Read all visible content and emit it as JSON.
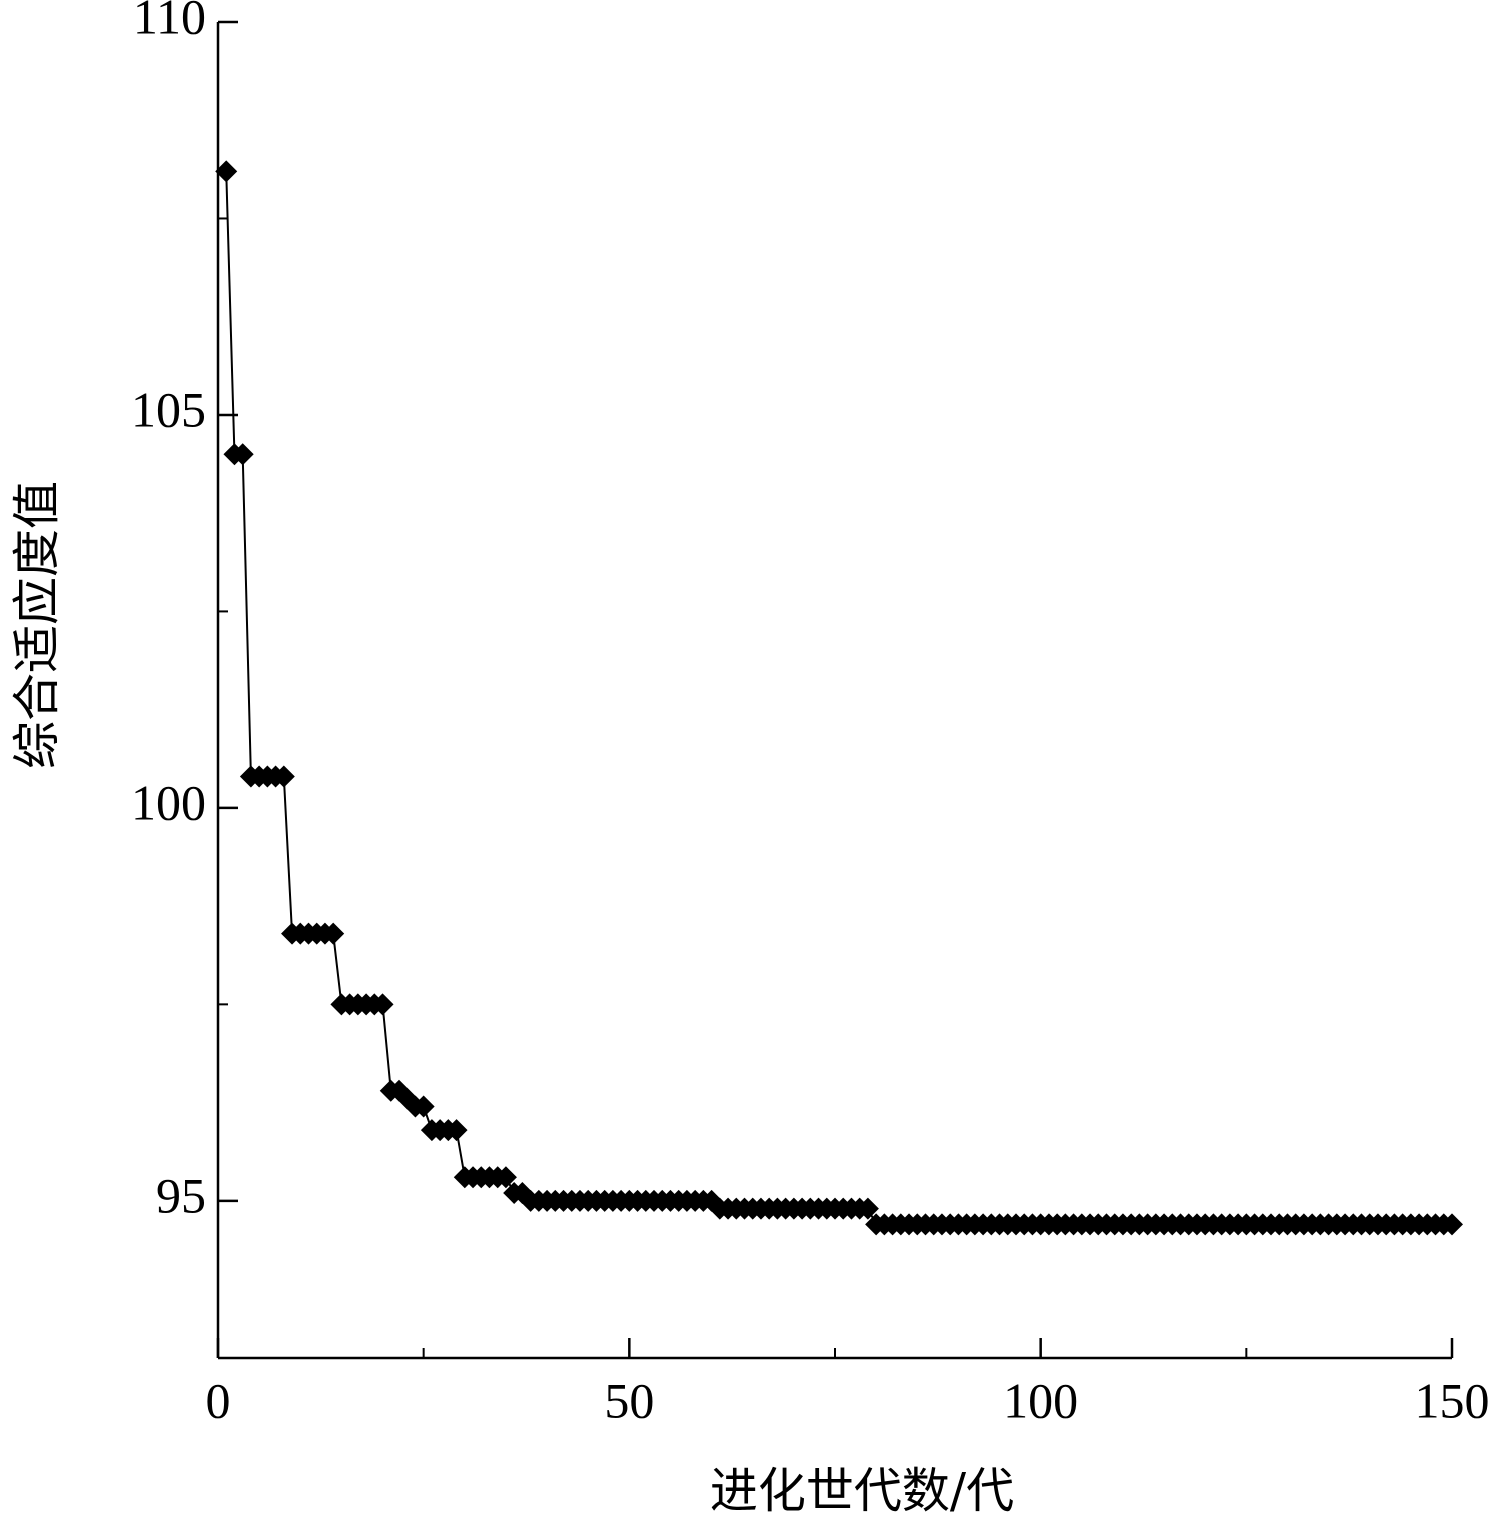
{
  "chart_data": {
    "type": "line",
    "xlabel": "进化世代数/代",
    "ylabel": "综合适应度值",
    "x": [
      1,
      2,
      3,
      4,
      5,
      6,
      7,
      8,
      9,
      10,
      11,
      12,
      13,
      14,
      15,
      16,
      17,
      18,
      19,
      20,
      21,
      22,
      23,
      24,
      25,
      26,
      27,
      28,
      29,
      30,
      31,
      32,
      33,
      34,
      35,
      36,
      37,
      38,
      39,
      40,
      41,
      42,
      43,
      44,
      45,
      46,
      47,
      48,
      49,
      50,
      51,
      52,
      53,
      54,
      55,
      56,
      57,
      58,
      59,
      60,
      61,
      62,
      63,
      64,
      65,
      66,
      67,
      68,
      69,
      70,
      71,
      72,
      73,
      74,
      75,
      76,
      77,
      78,
      79,
      80,
      81,
      82,
      83,
      84,
      85,
      86,
      87,
      88,
      89,
      90,
      91,
      92,
      93,
      94,
      95,
      96,
      97,
      98,
      99,
      100,
      101,
      102,
      103,
      104,
      105,
      106,
      107,
      108,
      109,
      110,
      111,
      112,
      113,
      114,
      115,
      116,
      117,
      118,
      119,
      120,
      121,
      122,
      123,
      124,
      125,
      126,
      127,
      128,
      129,
      130,
      131,
      132,
      133,
      134,
      135,
      136,
      137,
      138,
      139,
      140,
      141,
      142,
      143,
      144,
      145,
      146,
      147,
      148,
      149,
      150
    ],
    "series": [
      {
        "color": "#000000",
        "values": [
          108.1,
          104.5,
          104.5,
          100.4,
          100.4,
          100.4,
          100.4,
          100.4,
          98.4,
          98.4,
          98.4,
          98.4,
          98.4,
          98.4,
          97.5,
          97.5,
          97.5,
          97.5,
          97.5,
          97.5,
          96.4,
          96.4,
          96.3,
          96.2,
          96.2,
          95.9,
          95.9,
          95.9,
          95.9,
          95.3,
          95.3,
          95.3,
          95.3,
          95.3,
          95.3,
          95.1,
          95.1,
          95.0,
          95.0,
          95.0,
          95.0,
          95.0,
          95.0,
          95.0,
          95.0,
          95.0,
          95.0,
          95.0,
          95.0,
          95.0,
          95.0,
          95.0,
          95.0,
          95.0,
          95.0,
          95.0,
          95.0,
          95.0,
          95.0,
          95.0,
          94.9,
          94.9,
          94.9,
          94.9,
          94.9,
          94.9,
          94.9,
          94.9,
          94.9,
          94.9,
          94.9,
          94.9,
          94.9,
          94.9,
          94.9,
          94.9,
          94.9,
          94.9,
          94.9,
          94.7,
          94.7,
          94.7,
          94.7,
          94.7,
          94.7,
          94.7,
          94.7,
          94.7,
          94.7,
          94.7,
          94.7,
          94.7,
          94.7,
          94.7,
          94.7,
          94.7,
          94.7,
          94.7,
          94.7,
          94.7,
          94.7,
          94.7,
          94.7,
          94.7,
          94.7,
          94.7,
          94.7,
          94.7,
          94.7,
          94.7,
          94.7,
          94.7,
          94.7,
          94.7,
          94.7,
          94.7,
          94.7,
          94.7,
          94.7,
          94.7,
          94.7,
          94.7,
          94.7,
          94.7,
          94.7,
          94.7,
          94.7,
          94.7,
          94.7,
          94.7,
          94.7,
          94.7,
          94.7,
          94.7,
          94.7,
          94.7,
          94.7,
          94.7,
          94.7,
          94.7,
          94.7,
          94.7,
          94.7,
          94.7,
          94.7,
          94.7,
          94.7,
          94.7,
          94.7,
          94.7
        ]
      }
    ],
    "xlim": [
      0,
      150
    ],
    "xticks": [
      0,
      50,
      100,
      150
    ],
    "xminor": [
      25,
      75,
      125
    ],
    "ylim": [
      93,
      110
    ],
    "yticks": [
      95,
      100,
      105,
      110
    ],
    "yminor": [
      97.5,
      102.5,
      107.5
    ]
  }
}
